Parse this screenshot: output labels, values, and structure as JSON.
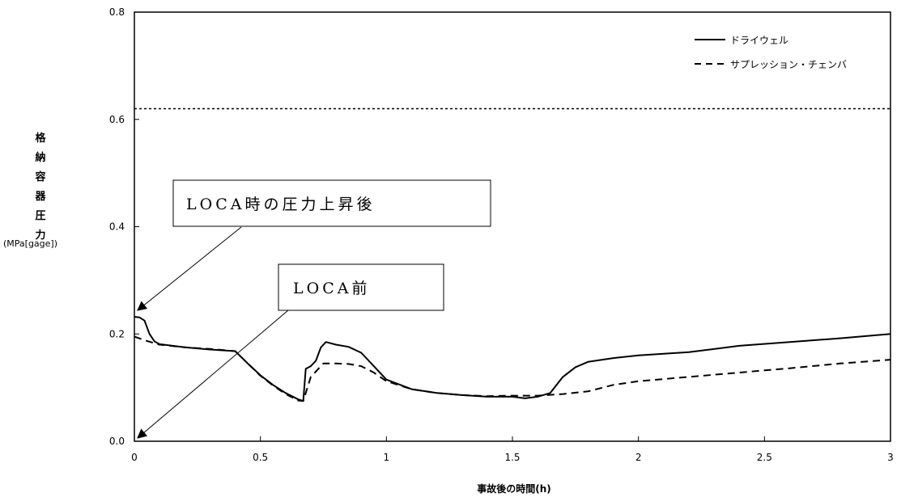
{
  "chart_data": {
    "type": "line",
    "xlabel": "事故後の時間(h)",
    "ylabel_main": "格納容器圧力",
    "ylabel_unit": "(MPa[gage])",
    "xlim": [
      0,
      3
    ],
    "ylim": [
      0,
      0.8
    ],
    "xticks": [
      "0",
      "0.5",
      "1",
      "1.5",
      "2",
      "2.5",
      "3"
    ],
    "xtick_values": [
      0,
      0.5,
      1,
      1.5,
      2,
      2.5,
      3
    ],
    "yticks": [
      "0.0",
      "0.2",
      "0.4",
      "0.6",
      "0.8"
    ],
    "ytick_values": [
      0,
      0.2,
      0.4,
      0.6,
      0.8
    ],
    "grid": false,
    "legend_position": "top-right",
    "reference_line": {
      "y": 0.62,
      "style": "dotted"
    },
    "series": [
      {
        "name": "ドライウェル",
        "style": "solid",
        "points": [
          [
            0,
            0.232
          ],
          [
            0.02,
            0.231
          ],
          [
            0.04,
            0.225
          ],
          [
            0.06,
            0.2
          ],
          [
            0.08,
            0.186
          ],
          [
            0.1,
            0.181
          ],
          [
            0.2,
            0.175
          ],
          [
            0.3,
            0.171
          ],
          [
            0.4,
            0.168
          ],
          [
            0.45,
            0.145
          ],
          [
            0.5,
            0.123
          ],
          [
            0.55,
            0.105
          ],
          [
            0.6,
            0.09
          ],
          [
            0.65,
            0.078
          ],
          [
            0.67,
            0.075
          ],
          [
            0.68,
            0.135
          ],
          [
            0.7,
            0.14
          ],
          [
            0.72,
            0.15
          ],
          [
            0.74,
            0.175
          ],
          [
            0.76,
            0.185
          ],
          [
            0.8,
            0.18
          ],
          [
            0.85,
            0.176
          ],
          [
            0.9,
            0.165
          ],
          [
            0.95,
            0.14
          ],
          [
            1.0,
            0.115
          ],
          [
            1.1,
            0.097
          ],
          [
            1.2,
            0.09
          ],
          [
            1.3,
            0.086
          ],
          [
            1.4,
            0.083
          ],
          [
            1.5,
            0.083
          ],
          [
            1.55,
            0.08
          ],
          [
            1.6,
            0.083
          ],
          [
            1.65,
            0.09
          ],
          [
            1.7,
            0.12
          ],
          [
            1.75,
            0.138
          ],
          [
            1.8,
            0.148
          ],
          [
            1.9,
            0.155
          ],
          [
            2.0,
            0.16
          ],
          [
            2.2,
            0.166
          ],
          [
            2.4,
            0.178
          ],
          [
            2.6,
            0.185
          ],
          [
            2.8,
            0.192
          ],
          [
            3.0,
            0.2
          ]
        ]
      },
      {
        "name": "サプレッション・チェンバ",
        "style": "dashed",
        "points": [
          [
            0,
            0.195
          ],
          [
            0.05,
            0.187
          ],
          [
            0.1,
            0.18
          ],
          [
            0.2,
            0.175
          ],
          [
            0.3,
            0.172
          ],
          [
            0.4,
            0.168
          ],
          [
            0.45,
            0.145
          ],
          [
            0.5,
            0.122
          ],
          [
            0.55,
            0.104
          ],
          [
            0.6,
            0.088
          ],
          [
            0.65,
            0.076
          ],
          [
            0.67,
            0.075
          ],
          [
            0.7,
            0.12
          ],
          [
            0.72,
            0.13
          ],
          [
            0.75,
            0.145
          ],
          [
            0.8,
            0.145
          ],
          [
            0.85,
            0.144
          ],
          [
            0.9,
            0.14
          ],
          [
            0.95,
            0.128
          ],
          [
            1.0,
            0.112
          ],
          [
            1.1,
            0.097
          ],
          [
            1.2,
            0.09
          ],
          [
            1.3,
            0.086
          ],
          [
            1.4,
            0.084
          ],
          [
            1.5,
            0.085
          ],
          [
            1.6,
            0.085
          ],
          [
            1.7,
            0.088
          ],
          [
            1.8,
            0.093
          ],
          [
            1.9,
            0.105
          ],
          [
            2.0,
            0.112
          ],
          [
            2.2,
            0.12
          ],
          [
            2.4,
            0.128
          ],
          [
            2.6,
            0.136
          ],
          [
            2.8,
            0.145
          ],
          [
            3.0,
            0.152
          ]
        ]
      }
    ],
    "annotations": [
      {
        "text": "LOCA時の圧力上昇後",
        "target": [
          0,
          0.232
        ]
      },
      {
        "text": "LOCA前",
        "target": [
          0,
          0.0
        ]
      }
    ]
  }
}
